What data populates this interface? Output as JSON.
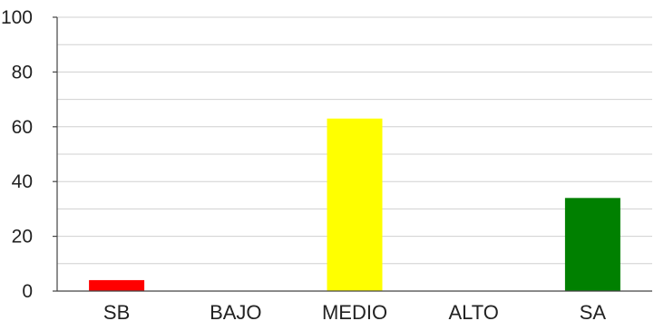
{
  "chart_data": {
    "type": "bar",
    "categories": [
      "SB",
      "BAJO",
      "MEDIO",
      "ALTO",
      "SA"
    ],
    "values": [
      4,
      0,
      63,
      0,
      34
    ],
    "colors": [
      "#ff0000",
      "#ffa500",
      "#ffff00",
      "#9acd32",
      "#008000"
    ],
    "ylim": [
      0,
      100
    ],
    "yticks": [
      0,
      20,
      40,
      60,
      80,
      100
    ],
    "minor_grid_step": 10,
    "title": "",
    "xlabel": "",
    "ylabel": "",
    "grid": true,
    "legend": "none"
  }
}
